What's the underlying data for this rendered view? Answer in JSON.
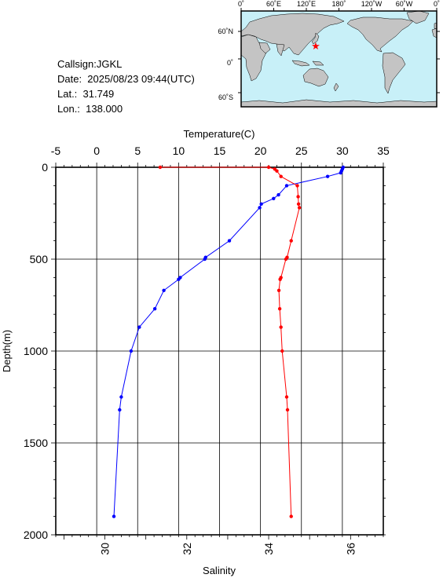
{
  "station": {
    "callsign_line": "Callsign:JGKL",
    "date_line": "Date:  2025/08/23 09:44(UTC)",
    "lat_line": "Lat.:  31.749",
    "lon_line": "Lon.:  138.000"
  },
  "map": {
    "lon_labels": [
      "0˚",
      "60˚E",
      "120˚E",
      "180˚",
      "120˚W",
      "60˚W",
      "0˚"
    ],
    "lat_labels": [
      "60˚N",
      "0˚",
      "60˚S"
    ],
    "colors": {
      "ocean": "#c8f0f8",
      "land": "#c4c4c4",
      "marker": "#ff0000"
    }
  },
  "chart_data": {
    "type": "line",
    "top_axis_label": "Temperature(C)",
    "bottom_axis_label": "Salinity",
    "left_axis_label": "Depth(m)",
    "temperature_ticks": [
      "-5",
      "0",
      "5",
      "10",
      "15",
      "20",
      "25",
      "30",
      "35"
    ],
    "salinity_ticks": [
      "30",
      "32",
      "34",
      "36"
    ],
    "depth_ticks": [
      "0",
      "500",
      "1000",
      "1500",
      "2000"
    ],
    "xlim_temperature": [
      -5,
      35
    ],
    "xlim_salinity": [
      28.8,
      36.8
    ],
    "ylim_depth": [
      0,
      2000
    ],
    "grid": true,
    "series": [
      {
        "quantity": "temperature",
        "color": "#0000ff",
        "points": [
          [
            30.1,
            0
          ],
          [
            30.0,
            10
          ],
          [
            29.9,
            20
          ],
          [
            29.8,
            30
          ],
          [
            28.2,
            50
          ],
          [
            23.2,
            100
          ],
          [
            22.2,
            150
          ],
          [
            21.6,
            170
          ],
          [
            20.1,
            200
          ],
          [
            19.9,
            220
          ],
          [
            16.2,
            400
          ],
          [
            13.3,
            490
          ],
          [
            13.2,
            500
          ],
          [
            10.2,
            600
          ],
          [
            10.0,
            610
          ],
          [
            8.2,
            670
          ],
          [
            7.1,
            770
          ],
          [
            5.2,
            870
          ],
          [
            4.2,
            1000
          ],
          [
            3.0,
            1250
          ],
          [
            2.8,
            1320
          ],
          [
            2.1,
            1900
          ]
        ]
      },
      {
        "quantity": "salinity",
        "color": "#ff0000",
        "points": [
          [
            31.35,
            0
          ],
          [
            34.0,
            0
          ],
          [
            34.15,
            10
          ],
          [
            34.2,
            20
          ],
          [
            34.3,
            50
          ],
          [
            34.7,
            100
          ],
          [
            34.72,
            160
          ],
          [
            34.73,
            200
          ],
          [
            34.75,
            220
          ],
          [
            34.55,
            400
          ],
          [
            34.45,
            490
          ],
          [
            34.42,
            500
          ],
          [
            34.3,
            600
          ],
          [
            34.28,
            610
          ],
          [
            34.25,
            670
          ],
          [
            34.27,
            770
          ],
          [
            34.3,
            870
          ],
          [
            34.33,
            1000
          ],
          [
            34.44,
            1250
          ],
          [
            34.46,
            1320
          ],
          [
            34.55,
            1900
          ]
        ]
      }
    ]
  }
}
